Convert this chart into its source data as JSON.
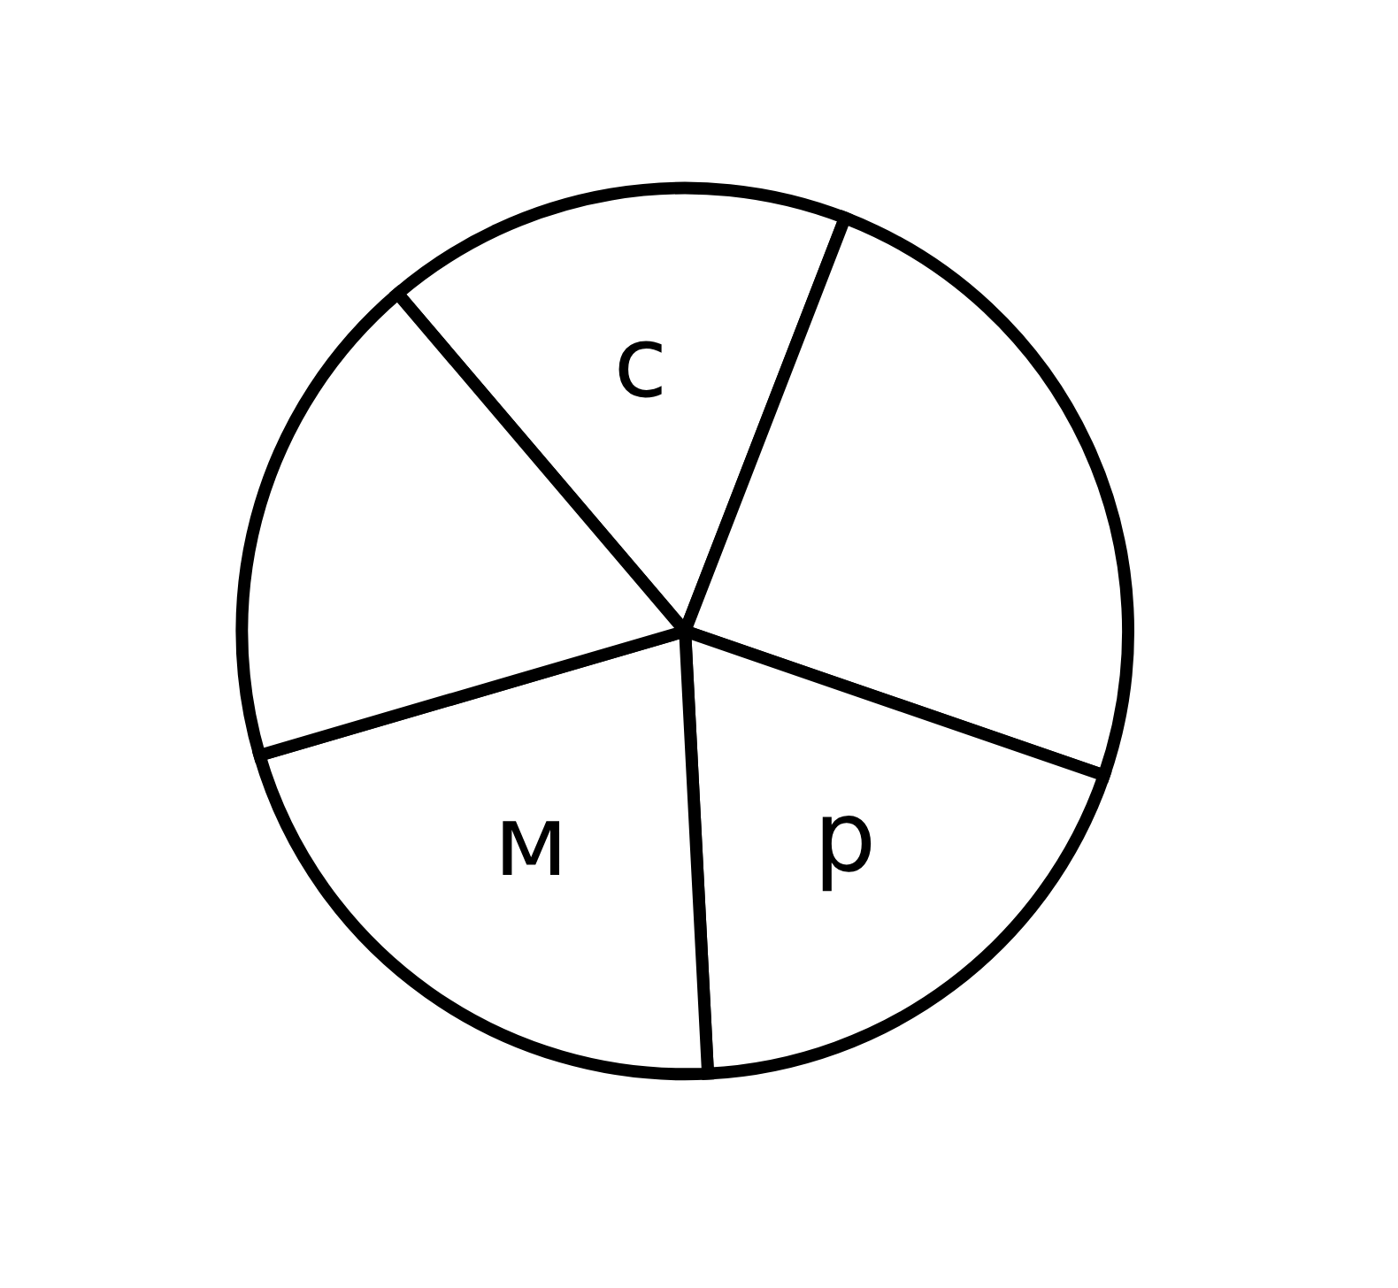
{
  "chart_data": {
    "type": "pie",
    "categories": [
      "c",
      null,
      "p",
      "м",
      null
    ],
    "values": [
      17.1,
      24.4,
      18.9,
      21.3,
      18.3
    ],
    "colors": [
      "#ffffff",
      "#ffffff",
      "#ffffff",
      "#ffffff",
      "#ffffff"
    ]
  }
}
